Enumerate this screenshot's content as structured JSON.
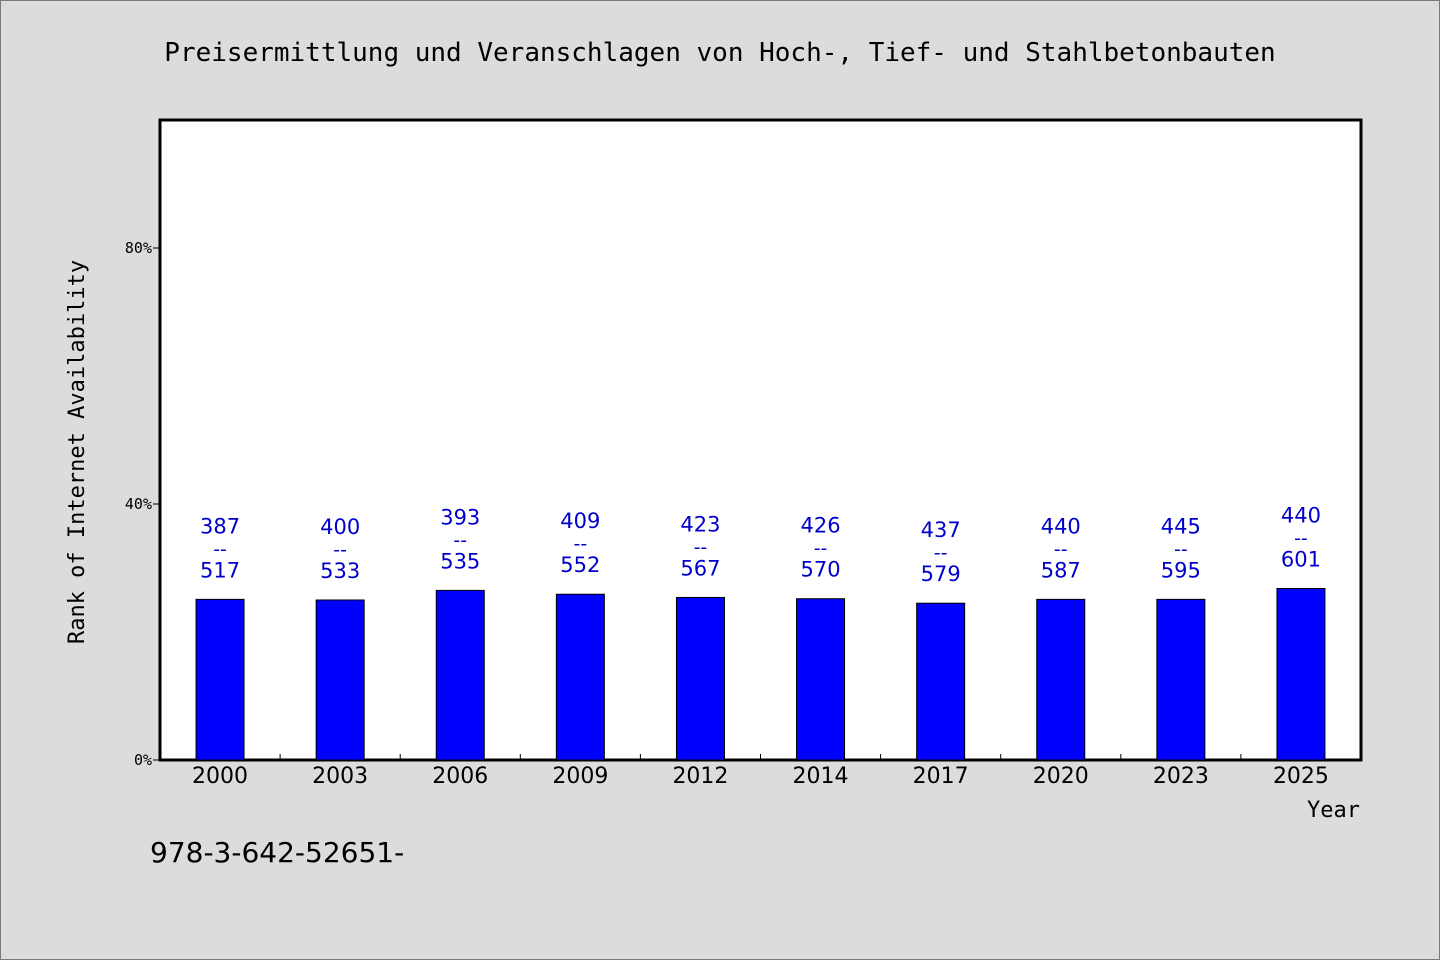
{
  "chart_data": {
    "type": "bar",
    "title": "Preisermittlung und Veranschlagen von Hoch-, Tief- und Stahlbetonbauten",
    "xlabel": "Year",
    "ylabel": "Rank of Internet Availability",
    "y_ticks": [
      "0%",
      "40%",
      "80%"
    ],
    "ylim": [
      0,
      100
    ],
    "categories": [
      "2000",
      "2003",
      "2006",
      "2009",
      "2012",
      "2014",
      "2017",
      "2020",
      "2023",
      "2025"
    ],
    "values": [
      25.1,
      25.0,
      26.5,
      25.9,
      25.4,
      25.2,
      24.5,
      25.1,
      25.1,
      26.8
    ],
    "numerators": [
      "387",
      "400",
      "393",
      "409",
      "423",
      "426",
      "437",
      "440",
      "445",
      "440"
    ],
    "denominators": [
      "517",
      "533",
      "535",
      "552",
      "567",
      "570",
      "579",
      "587",
      "595",
      "601"
    ],
    "label_separator": "--",
    "bar_color": "#0000ff",
    "label_color": "#0000cc",
    "grid": false,
    "footer": "978-3-642-52651-"
  }
}
